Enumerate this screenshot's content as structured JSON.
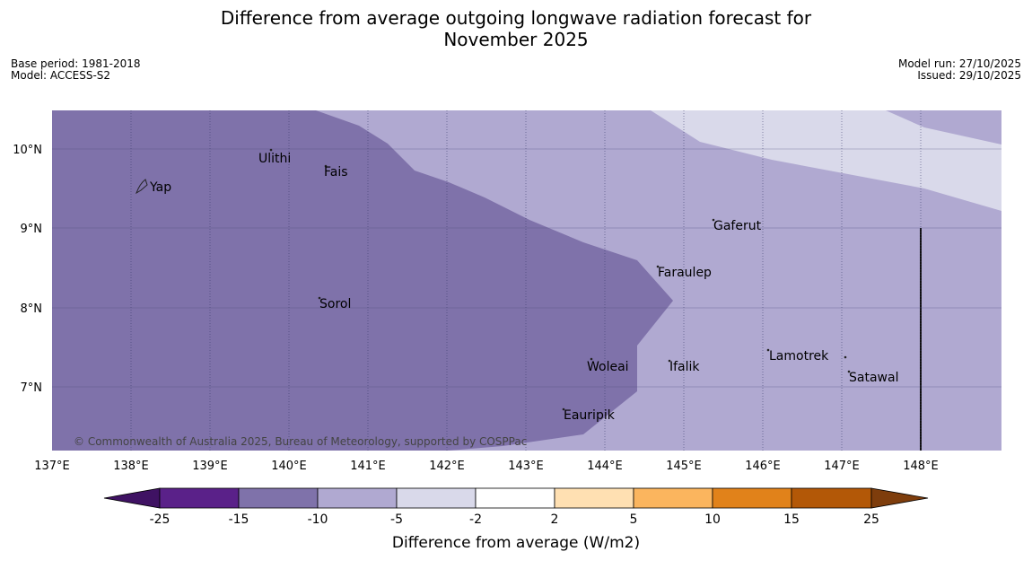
{
  "title": {
    "line1": "Difference from average outgoing longwave radiation forecast for",
    "line2": "November 2025"
  },
  "meta": {
    "base_period": "Base period: 1981-2018",
    "model": "Model: ACCESS-S2",
    "model_run": "Model run: 27/10/2025",
    "issued": "Issued: 29/10/2025"
  },
  "map": {
    "lon_ticks": [
      "137°E",
      "138°E",
      "139°E",
      "140°E",
      "141°E",
      "142°E",
      "143°E",
      "144°E",
      "145°E",
      "146°E",
      "147°E",
      "148°E"
    ],
    "lat_ticks": [
      "10°N",
      "9°N",
      "8°N",
      "7°N"
    ],
    "places": [
      {
        "name": "Yap",
        "lon": 138.2,
        "lat": 9.52
      },
      {
        "name": "Ulithi",
        "lon": 139.6,
        "lat": 9.9
      },
      {
        "name": "Fais",
        "lon": 140.4,
        "lat": 9.73
      },
      {
        "name": "Gaferut",
        "lon": 145.35,
        "lat": 9.02
      },
      {
        "name": "Faraulep",
        "lon": 144.6,
        "lat": 8.44
      },
      {
        "name": "Sorol",
        "lon": 140.4,
        "lat": 8.05
      },
      {
        "name": "Lamotrek",
        "lon": 146.05,
        "lat": 7.38
      },
      {
        "name": "Woleai",
        "lon": 143.75,
        "lat": 7.27
      },
      {
        "name": "Ifalik",
        "lon": 144.8,
        "lat": 7.27
      },
      {
        "name": "Satawal",
        "lon": 147.05,
        "lat": 7.13
      },
      {
        "name": "Eauripik",
        "lon": 143.45,
        "lat": 6.63
      }
    ],
    "copyright": "© Commonwealth of Australia 2025, Bureau of Meteorology, supported by COSPPac"
  },
  "colorbar": {
    "label": "Difference from average (W/m2)",
    "ticks": [
      "-25",
      "-15",
      "-10",
      "-5",
      "-2",
      "2",
      "5",
      "10",
      "15",
      "25"
    ],
    "colors": {
      "below": "#3f1263",
      "c1": "#5a2189",
      "c2": "#7f72aa",
      "c3": "#b0a9d1",
      "c4": "#d9d9ea",
      "c5": "#ffffff",
      "c6": "#ffe0b2",
      "c7": "#fbb55e",
      "c8": "#e1821a",
      "c9": "#b35807",
      "above": "#7e3d0c"
    }
  }
}
